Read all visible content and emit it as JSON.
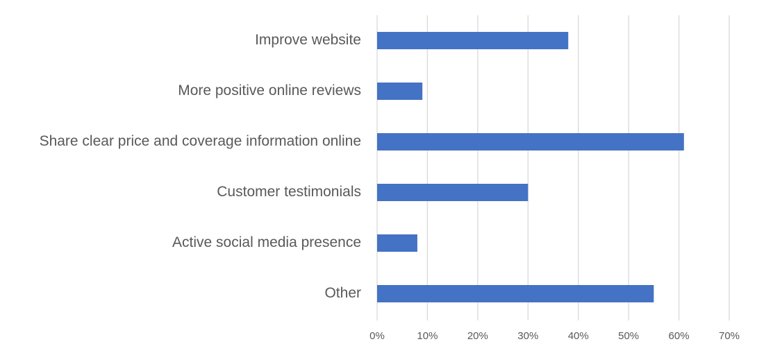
{
  "chart_data": {
    "type": "bar",
    "orientation": "horizontal",
    "categories": [
      "Improve website",
      "More positive online reviews",
      "Share clear price and coverage information online",
      "Customer testimonials",
      "Active social media presence",
      "Other"
    ],
    "values": [
      38,
      9,
      61,
      30,
      8,
      55
    ],
    "color": "#4472c4",
    "xlim": [
      0,
      70
    ],
    "xticks": [
      {
        "value": 0,
        "label": "0%"
      },
      {
        "value": 10,
        "label": "10%"
      },
      {
        "value": 20,
        "label": "20%"
      },
      {
        "value": 30,
        "label": "30%"
      },
      {
        "value": 40,
        "label": "40%"
      },
      {
        "value": 50,
        "label": "50%"
      },
      {
        "value": 60,
        "label": "60%"
      },
      {
        "value": 70,
        "label": "70%"
      }
    ],
    "grid": true
  }
}
